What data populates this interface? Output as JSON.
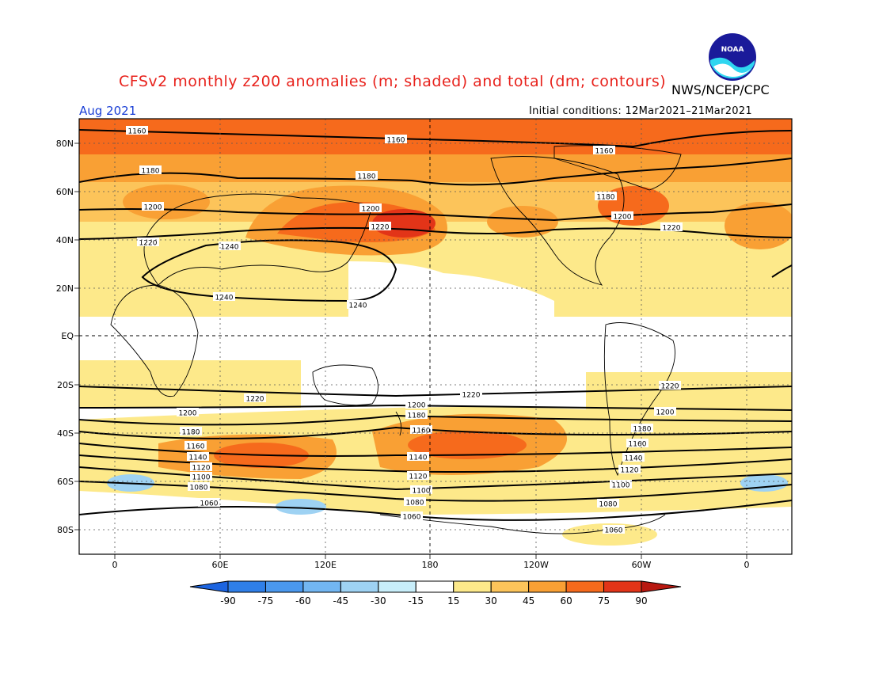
{
  "header": {
    "title": "CFSv2 monthly z200 anomalies (m; shaded) and total (dm; contours)",
    "agency": "NWS/NCEP/CPC",
    "month": "Aug 2021",
    "initial_conditions": "Initial conditions: 12Mar2021–21Mar2021",
    "logo_text": "NOAA"
  },
  "map": {
    "lat_labels": [
      "80N",
      "60N",
      "40N",
      "20N",
      "EQ",
      "20S",
      "40S",
      "60S",
      "80S"
    ],
    "lon_labels": [
      "0",
      "60E",
      "120E",
      "180",
      "120W",
      "60W",
      "0"
    ],
    "contour_labels": [
      "1060",
      "1080",
      "1100",
      "1120",
      "1140",
      "1160",
      "1180",
      "1200",
      "1220",
      "1240"
    ]
  },
  "colorbar": {
    "ticks": [
      "-90",
      "-75",
      "-60",
      "-45",
      "-30",
      "-15",
      "15",
      "30",
      "45",
      "60",
      "75",
      "90"
    ],
    "colors": [
      "#1c64e0",
      "#2f7fe8",
      "#4a98ee",
      "#72b6f2",
      "#9ed2f3",
      "#c8eefa",
      "#ffffff",
      "#fde98a",
      "#fcc45a",
      "#f9a034",
      "#f66a1c",
      "#e23418",
      "#b81810"
    ]
  }
}
